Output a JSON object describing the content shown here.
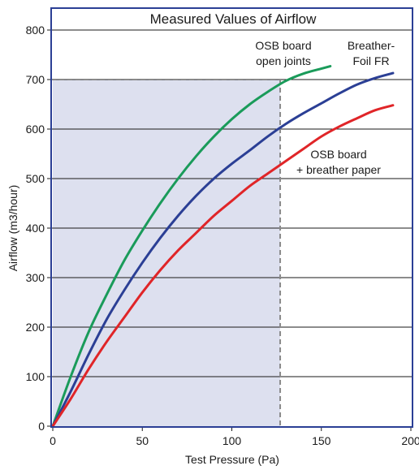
{
  "chart_data": {
    "type": "line",
    "title": "Measured Values of Airflow",
    "xlabel": "Test Pressure (Pa)",
    "ylabel": "Airflow (m3/hour)",
    "xlim": [
      0,
      200
    ],
    "ylim": [
      0,
      800
    ],
    "xticks": [
      0,
      50,
      100,
      150,
      200
    ],
    "yticks": [
      0,
      100,
      200,
      300,
      400,
      500,
      600,
      700,
      800
    ],
    "grid": "horizontal",
    "shaded_region": {
      "x": [
        0,
        127
      ],
      "y": [
        0,
        700
      ],
      "color": "#dde0ef"
    },
    "reference_lines": {
      "x": 127,
      "y": 700,
      "style": "dashed"
    },
    "series": [
      {
        "name": "OSB board open joints",
        "label_lines": [
          "OSB board",
          "open joints"
        ],
        "color": "#1a9b5a",
        "x": [
          0,
          10,
          20,
          30,
          40,
          50,
          60,
          70,
          80,
          90,
          100,
          110,
          120,
          130,
          140,
          150,
          155
        ],
        "y": [
          0,
          100,
          190,
          265,
          335,
          395,
          450,
          500,
          545,
          585,
          620,
          650,
          675,
          697,
          712,
          722,
          727
        ]
      },
      {
        "name": "Breather-Foil FR",
        "label_lines": [
          "Breather-",
          "Foil FR"
        ],
        "color": "#2b3f95",
        "x": [
          0,
          10,
          20,
          30,
          40,
          50,
          60,
          70,
          80,
          90,
          100,
          110,
          120,
          130,
          140,
          150,
          160,
          170,
          180,
          190
        ],
        "y": [
          0,
          70,
          145,
          215,
          275,
          330,
          380,
          425,
          465,
          500,
          530,
          557,
          585,
          610,
          632,
          652,
          672,
          690,
          703,
          713
        ]
      },
      {
        "name": "OSB board + breather paper",
        "label_lines": [
          "OSB board",
          "+ breather paper"
        ],
        "color": "#e02528",
        "x": [
          0,
          10,
          20,
          30,
          40,
          50,
          60,
          70,
          80,
          90,
          100,
          110,
          120,
          130,
          140,
          150,
          160,
          170,
          180,
          190
        ],
        "y": [
          0,
          55,
          115,
          170,
          220,
          270,
          315,
          355,
          390,
          425,
          455,
          485,
          510,
          535,
          560,
          585,
          605,
          622,
          638,
          648
        ]
      }
    ]
  }
}
